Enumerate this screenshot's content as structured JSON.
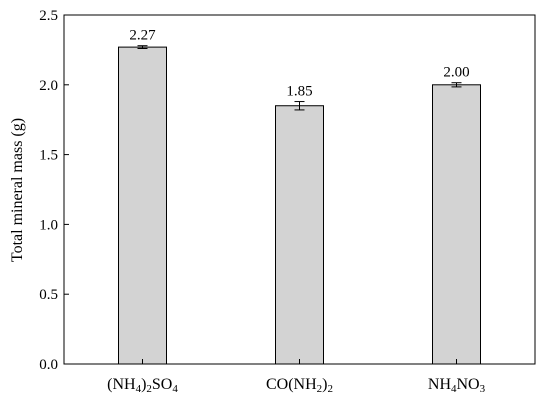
{
  "chart_data": {
    "type": "bar",
    "ylabel": "Total mineral mass (g)",
    "ylim": [
      0,
      2.5
    ],
    "yticks": [
      "0.0",
      "0.5",
      "1.0",
      "1.5",
      "2.0",
      "2.5"
    ],
    "grid": false,
    "legend": "none",
    "bar_color": "#d3d3d3",
    "categories": [
      {
        "parts": [
          {
            "t": "(NH",
            "sub": false
          },
          {
            "t": "4",
            "sub": true
          },
          {
            "t": ")",
            "sub": false
          },
          {
            "t": "2",
            "sub": true
          },
          {
            "t": "SO",
            "sub": false
          },
          {
            "t": "4",
            "sub": true
          }
        ]
      },
      {
        "parts": [
          {
            "t": "CO(NH",
            "sub": false
          },
          {
            "t": "2",
            "sub": true
          },
          {
            "t": ")",
            "sub": false
          },
          {
            "t": "2",
            "sub": true
          }
        ]
      },
      {
        "parts": [
          {
            "t": "NH",
            "sub": false
          },
          {
            "t": "4",
            "sub": true
          },
          {
            "t": "NO",
            "sub": false
          },
          {
            "t": "3",
            "sub": true
          }
        ]
      }
    ],
    "values": [
      2.27,
      1.85,
      2.0
    ],
    "errors": [
      0.01,
      0.03,
      0.015
    ],
    "value_labels": [
      "2.27",
      "1.85",
      "2.00"
    ]
  }
}
